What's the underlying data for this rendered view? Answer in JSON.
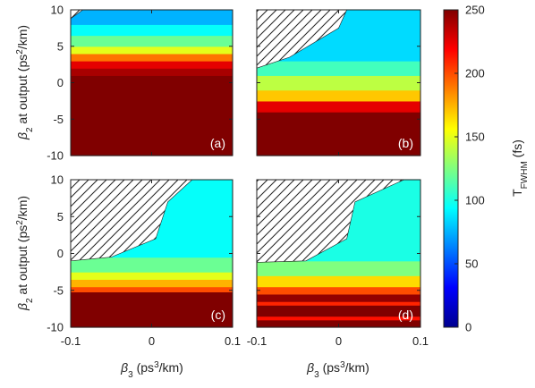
{
  "chart_data": {
    "type": "heatmap",
    "x_tick_labels": [
      "-0.1",
      "0",
      "0.1"
    ],
    "y_tick_labels": [
      "10",
      "5",
      "0",
      "-5",
      "-10"
    ],
    "xlim": [
      -0.1,
      0.1
    ],
    "ylim": [
      -10,
      10
    ],
    "xlabel_left": "β3 (ps3/km)",
    "xlabel_right": "β3 (ps3/km)",
    "ylabel_top": "β2 at output (ps2/km)",
    "ylabel_bottom": "β2 at output (ps2/km)",
    "colorbar": {
      "label": "TFWHM (fs)",
      "range": [
        0,
        250
      ],
      "tick_labels": [
        "0",
        "50",
        "100",
        "150",
        "200",
        "250"
      ]
    },
    "panels": [
      {
        "label": "(a)",
        "hatched_region": [
          [
            -0.1,
            10
          ],
          [
            -0.085,
            10
          ],
          [
            -0.1,
            8.8
          ]
        ],
        "bands": [
          {
            "y": [
              -10,
              1.0
            ],
            "t": 250
          },
          {
            "y": [
              1.0,
              2.0
            ],
            "t": 240
          },
          {
            "y": [
              2.0,
              3.0
            ],
            "t": 225
          },
          {
            "y": [
              3.0,
              4.0
            ],
            "t": 190
          },
          {
            "y": [
              4.0,
              5.0
            ],
            "t": 150
          },
          {
            "y": [
              5.0,
              6.5
            ],
            "t": 120
          },
          {
            "y": [
              6.5,
              8.0
            ],
            "t": 95
          },
          {
            "y": [
              8.0,
              10.0
            ],
            "t": 75
          }
        ]
      },
      {
        "label": "(b)",
        "hatched_region": [
          [
            -0.1,
            10
          ],
          [
            0.01,
            10
          ],
          [
            0.0,
            7.5
          ],
          [
            -0.06,
            3.5
          ],
          [
            -0.1,
            2
          ]
        ],
        "bands": [
          {
            "y": [
              -10,
              -4.0
            ],
            "t": 250
          },
          {
            "y": [
              -4.0,
              -2.5
            ],
            "t": 225
          },
          {
            "y": [
              -2.5,
              -1.0
            ],
            "t": 170
          },
          {
            "y": [
              -1.0,
              1.0
            ],
            "t": 140
          },
          {
            "y": [
              1.0,
              3.0
            ],
            "t": 110
          },
          {
            "y": [
              3.0,
              10.0
            ],
            "t": 85
          }
        ]
      },
      {
        "label": "(c)",
        "hatched_region": [
          [
            -0.1,
            10
          ],
          [
            0.05,
            10
          ],
          [
            0.02,
            7
          ],
          [
            0.005,
            2
          ],
          [
            -0.05,
            -0.5
          ],
          [
            -0.1,
            -1
          ]
        ],
        "bands": [
          {
            "y": [
              -10,
              -5.2
            ],
            "t": 250
          },
          {
            "y": [
              -5.2,
              -4.5
            ],
            "t": 200
          },
          {
            "y": [
              -4.5,
              -3.5
            ],
            "t": 175
          },
          {
            "y": [
              -3.5,
              -2.5
            ],
            "t": 150
          },
          {
            "y": [
              -2.5,
              -0.5
            ],
            "t": 120
          },
          {
            "y": [
              -0.5,
              10.0
            ],
            "t": 95
          }
        ]
      },
      {
        "label": "(d)",
        "hatched_region": [
          [
            -0.1,
            10
          ],
          [
            0.08,
            10
          ],
          [
            0.02,
            7
          ],
          [
            0.01,
            2
          ],
          [
            -0.04,
            -1
          ],
          [
            -0.1,
            -1.2
          ]
        ],
        "bands": [
          {
            "y": [
              -10,
              -9.0
            ],
            "t": 250
          },
          {
            "y": [
              -9.0,
              -8.5
            ],
            "t": 215
          },
          {
            "y": [
              -8.5,
              -7.0
            ],
            "t": 250
          },
          {
            "y": [
              -7.0,
              -6.5
            ],
            "t": 210
          },
          {
            "y": [
              -6.5,
              -5.5
            ],
            "t": 245
          },
          {
            "y": [
              -5.5,
              -4.5
            ],
            "t": 200
          },
          {
            "y": [
              -4.5,
              -3.0
            ],
            "t": 165
          },
          {
            "y": [
              -3.0,
              -1.0
            ],
            "t": 125
          },
          {
            "y": [
              -1.0,
              10.0
            ],
            "t": 100
          }
        ]
      }
    ]
  }
}
